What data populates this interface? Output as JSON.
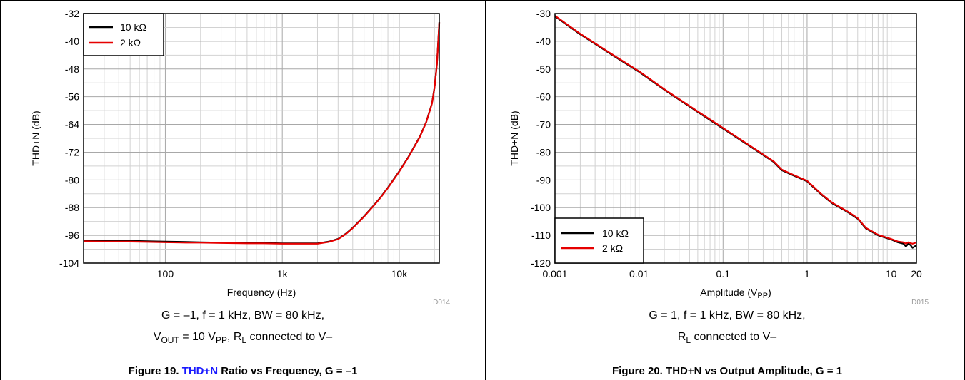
{
  "colors": {
    "series_black": "#000000",
    "series_red": "#e60000",
    "grid": "#c8c8c8",
    "frame": "#000000",
    "link": "#1a1aff"
  },
  "chart_data": [
    {
      "type": "line",
      "xscale": "log",
      "xlim": [
        20,
        22000
      ],
      "ylim": [
        -104,
        -32
      ],
      "yticks": [
        "-104",
        "-96",
        "-88",
        "-80",
        "-72",
        "-64",
        "-56",
        "-48",
        "-40",
        "-32"
      ],
      "xtick_labels": [
        "100",
        "1k",
        "10k"
      ],
      "xlabel": "Frequency (Hz)",
      "ylabel": "THD+N (dB)",
      "legend_position": "top-left",
      "code": "D014",
      "conditions": [
        "G = –1, f = 1 kHz, BW = 80 kHz,",
        "V",
        "OUT",
        " = 10 V",
        "PP",
        ", R",
        "L",
        " connected to V–"
      ],
      "caption": {
        "prefix": "Figure 19. ",
        "link": "THD+N",
        "suffix": " Ratio vs Frequency, G = –1"
      },
      "series": [
        {
          "name": "10 kΩ",
          "color": "#000000",
          "x": [
            20,
            30,
            50,
            70,
            100,
            150,
            200,
            300,
            500,
            700,
            1000,
            1500,
            2000,
            2500,
            3000,
            3500,
            4000,
            5000,
            6000,
            7000,
            8000,
            10000,
            12000,
            15000,
            17000,
            19000,
            20000,
            21000,
            22000
          ],
          "y": [
            -97.5,
            -97.6,
            -97.6,
            -97.7,
            -97.8,
            -97.9,
            -98,
            -98.1,
            -98.2,
            -98.2,
            -98.3,
            -98.3,
            -98.3,
            -97.8,
            -97,
            -95.5,
            -93.8,
            -90.5,
            -87.5,
            -84.8,
            -82.2,
            -77.5,
            -73.3,
            -67.5,
            -63.3,
            -58,
            -53.5,
            -46.5,
            -34.5
          ]
        },
        {
          "name": "2 kΩ",
          "color": "#e60000",
          "x": [
            20,
            30,
            50,
            70,
            100,
            150,
            200,
            300,
            500,
            700,
            1000,
            1500,
            2000,
            2500,
            3000,
            3500,
            4000,
            5000,
            6000,
            7000,
            8000,
            10000,
            12000,
            15000,
            17000,
            19000,
            20000,
            21000,
            22000
          ],
          "y": [
            -97.7,
            -97.8,
            -97.8,
            -97.9,
            -98,
            -98.1,
            -98.1,
            -98.2,
            -98.3,
            -98.3,
            -98.4,
            -98.4,
            -98.4,
            -97.9,
            -97.1,
            -95.6,
            -93.9,
            -90.6,
            -87.6,
            -84.9,
            -82.3,
            -77.6,
            -73.4,
            -67.6,
            -63.4,
            -58.1,
            -53.6,
            -46.6,
            -34.6
          ]
        }
      ]
    },
    {
      "type": "line",
      "xscale": "log",
      "xlim": [
        0.001,
        20
      ],
      "ylim": [
        -120,
        -30
      ],
      "yticks": [
        "-120",
        "-110",
        "-100",
        "-90",
        "-80",
        "-70",
        "-60",
        "-50",
        "-40",
        "-30"
      ],
      "xtick_labels": [
        "0.001",
        "0.01",
        "0.1",
        "1",
        "10",
        "20"
      ],
      "xlabel": "Amplitude (V",
      "xlabel_sub": "PP",
      "xlabel_end": ")",
      "ylabel": "THD+N (dB)",
      "legend_position": "bottom-left",
      "code": "D015",
      "conditions": [
        "G = 1, f = 1 kHz, BW = 80 kHz,",
        "R",
        "L",
        " connected to V–"
      ],
      "caption": {
        "prefix": "Figure 20. ",
        "link": "",
        "suffix": "THD+N vs Output Amplitude, G = 1"
      },
      "series": [
        {
          "name": "10 kΩ",
          "color": "#000000",
          "x": [
            0.001,
            0.002,
            0.005,
            0.01,
            0.02,
            0.05,
            0.1,
            0.2,
            0.4,
            0.5,
            0.7,
            1,
            1.5,
            2,
            3,
            4,
            5,
            7,
            10,
            12,
            14,
            15,
            16,
            17,
            18,
            19,
            20
          ],
          "y": [
            -31,
            -37.5,
            -45.3,
            -51,
            -57.5,
            -65.5,
            -71.5,
            -77.5,
            -83.5,
            -86.5,
            -88.5,
            -90.5,
            -95.5,
            -98.5,
            -101.5,
            -104,
            -107.5,
            -110,
            -111.5,
            -112.5,
            -113,
            -114,
            -113,
            -113.5,
            -114.5,
            -114,
            -113.5
          ]
        },
        {
          "name": "2 kΩ",
          "color": "#e60000",
          "x": [
            0.001,
            0.002,
            0.005,
            0.01,
            0.02,
            0.05,
            0.1,
            0.2,
            0.4,
            0.5,
            0.7,
            1,
            1.5,
            2,
            3,
            4,
            5,
            7,
            10,
            12,
            14,
            15,
            16,
            17,
            18,
            19,
            20
          ],
          "y": [
            -30.8,
            -37.3,
            -45.1,
            -50.8,
            -57.3,
            -65.3,
            -71.3,
            -77.3,
            -83.3,
            -86.3,
            -88.3,
            -90.3,
            -95.3,
            -98.3,
            -101.3,
            -103.8,
            -107.3,
            -109.8,
            -111.3,
            -112.2,
            -112.5,
            -113,
            -112.5,
            -112.8,
            -113,
            -112.8,
            -112.5
          ]
        }
      ]
    }
  ]
}
